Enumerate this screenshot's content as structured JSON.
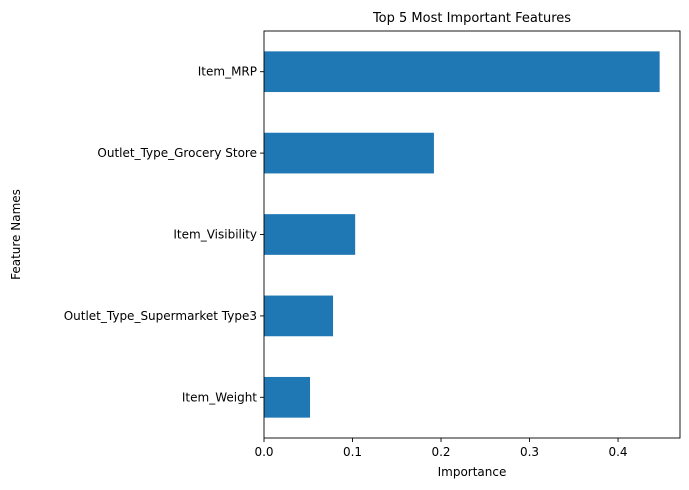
{
  "chart_data": {
    "type": "bar",
    "orientation": "horizontal",
    "title": "Top 5 Most Important Features",
    "xlabel": "Importance",
    "ylabel": "Feature Names",
    "categories": [
      "Item_MRP",
      "Outlet_Type_Grocery Store",
      "Item_Visibility",
      "Outlet_Type_Supermarket Type3",
      "Item_Weight"
    ],
    "values": [
      0.447,
      0.192,
      0.103,
      0.078,
      0.052
    ],
    "xlim": [
      0,
      0.47
    ],
    "xticks": [
      0.0,
      0.1,
      0.2,
      0.3,
      0.4
    ],
    "xtick_labels": [
      "0.0",
      "0.1",
      "0.2",
      "0.3",
      "0.4"
    ],
    "bar_color": "#1f77b4",
    "grid": false,
    "legend": "none"
  }
}
